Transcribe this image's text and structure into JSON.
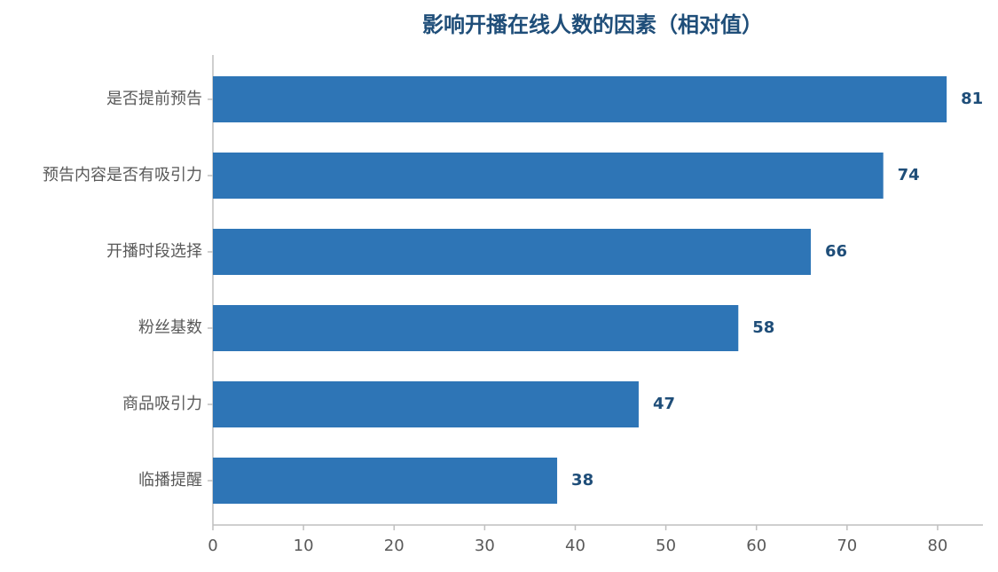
{
  "chart_data": {
    "type": "bar",
    "orientation": "horizontal",
    "title": "影响开播在线人数的因素（相对值）",
    "categories": [
      "是否提前预告",
      "预告内容是否有吸引力",
      "开播时段选择",
      "粉丝基数",
      "商品吸引力",
      "临播提醒"
    ],
    "values": [
      81,
      74,
      66,
      58,
      47,
      38
    ],
    "color": "#2e75b6",
    "xlim": [
      0,
      85
    ],
    "xticks": [
      0,
      10,
      20,
      30,
      40,
      50,
      60,
      70,
      80
    ],
    "grid": false
  }
}
